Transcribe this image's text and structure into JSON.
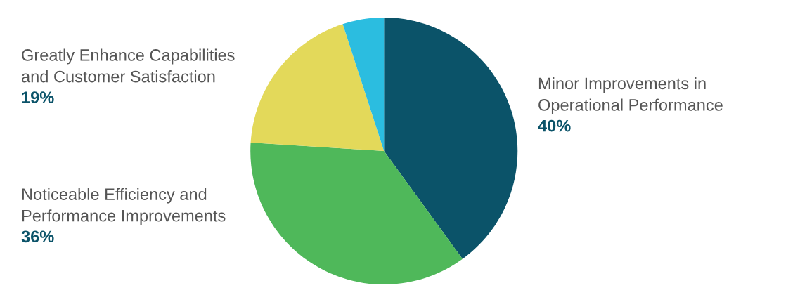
{
  "chart_data": {
    "type": "pie",
    "categories": [
      "Minor Improvements in\nOperational Performance",
      "Noticeable Efficiency and\nPerformance Improvements",
      "Greatly Enhance Capabilities\nand Customer Satisfaction",
      null
    ],
    "values": [
      40,
      36,
      19,
      5
    ],
    "colors": [
      "#0b5369",
      "#4fb85a",
      "#e3d95a",
      "#2bbde0"
    ],
    "value_labels": [
      "40%",
      "36%",
      "19%",
      null
    ],
    "legend": false
  }
}
